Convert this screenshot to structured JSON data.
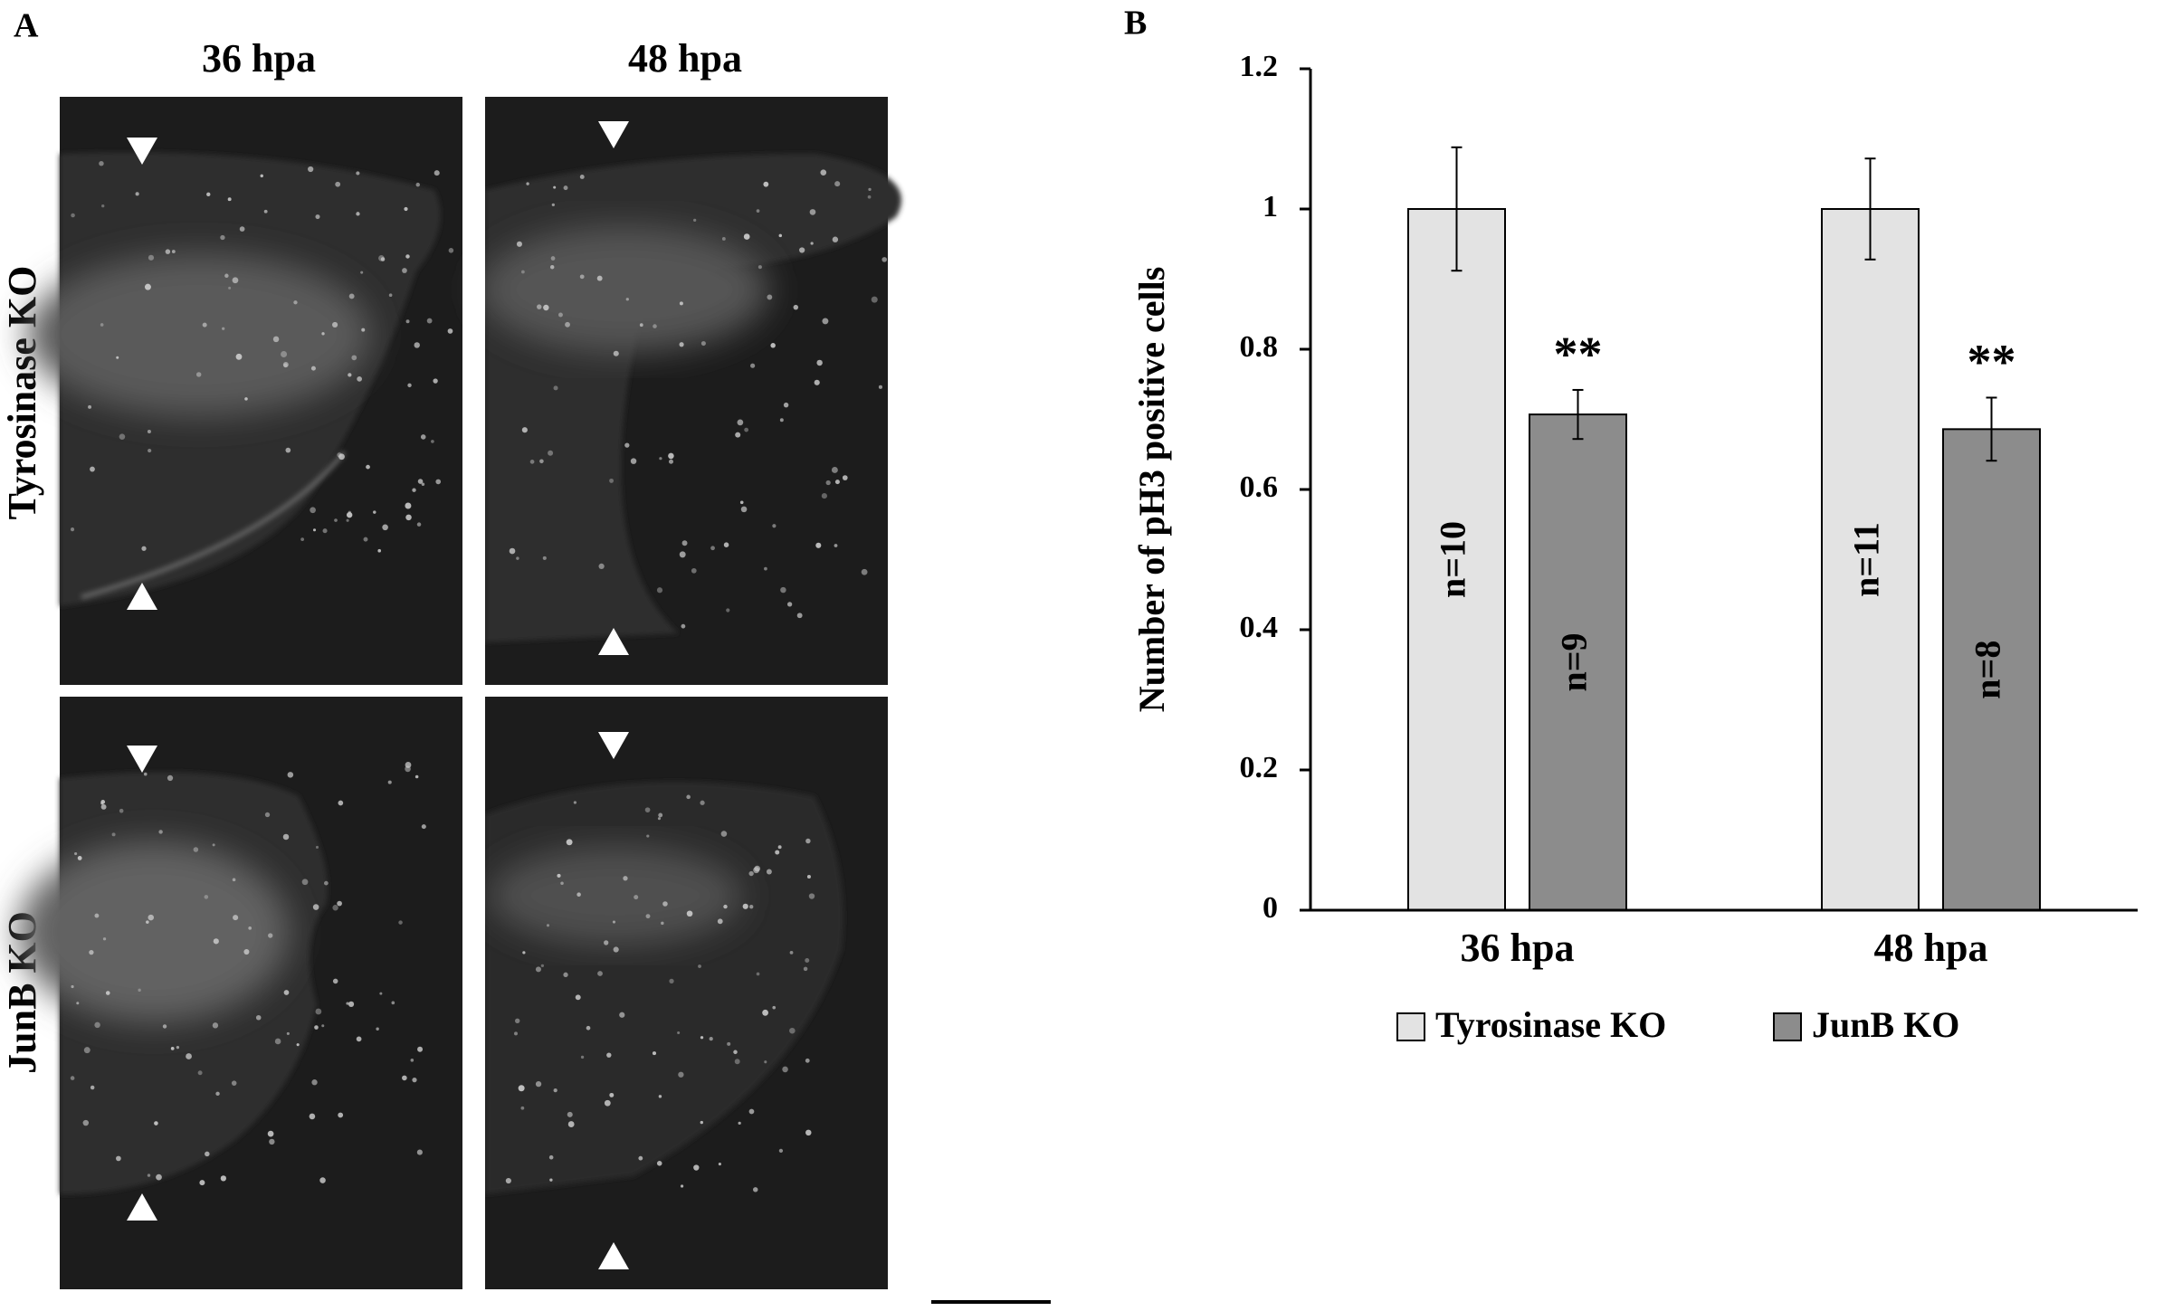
{
  "panel_a": {
    "label": "A",
    "columns": [
      "36 hpa",
      "48 hpa"
    ],
    "rows": [
      "Tyrosinase KO",
      "JunB KO"
    ]
  },
  "chart_data": {
    "type": "bar",
    "panel_label": "B",
    "ylabel": "Number of pH3 positive cells",
    "categories": [
      "36 hpa",
      "48 hpa"
    ],
    "series": [
      {
        "name": "Tyrosinase KO",
        "color": "#e3e3e3",
        "values": [
          1,
          1
        ],
        "errors": [
          0.088,
          0.072
        ],
        "annotations": [
          "n=10",
          "n=11"
        ]
      },
      {
        "name": "JunB KO",
        "color": "#8c8c8c",
        "values": [
          0.707,
          0.686
        ],
        "errors": [
          0.035,
          0.045
        ],
        "annotations": [
          "n=9",
          "n=8"
        ],
        "significance": [
          "**",
          "**"
        ]
      }
    ],
    "ylim": [
      0,
      1.2
    ],
    "yticks": [
      0,
      0.2,
      0.4,
      0.6,
      0.8,
      1,
      1.2
    ],
    "grid": false,
    "legend": "bottom"
  }
}
